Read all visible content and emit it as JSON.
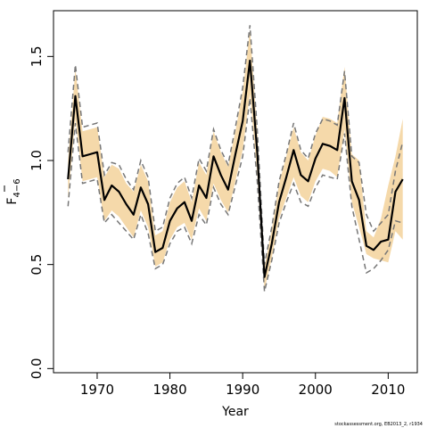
{
  "chart_data": {
    "type": "line",
    "xlabel": "Year",
    "ylabel_main": "F",
    "ylabel_sub": "4−6",
    "xlim": [
      1964,
      2014
    ],
    "ylim": [
      -0.02,
      1.72
    ],
    "xticks": [
      1970,
      1980,
      1990,
      2000,
      2010
    ],
    "yticks": [
      "0.0",
      "0.5",
      "1.0",
      "1.5"
    ],
    "x": [
      1966,
      1967,
      1968,
      1969,
      1970,
      1971,
      1972,
      1973,
      1974,
      1975,
      1976,
      1977,
      1978,
      1979,
      1980,
      1981,
      1982,
      1983,
      1984,
      1985,
      1986,
      1987,
      1988,
      1989,
      1990,
      1991,
      1992,
      1993,
      1994,
      1995,
      1996,
      1997,
      1998,
      1999,
      2000,
      2001,
      2002,
      2003,
      2004,
      2005,
      2006,
      2007,
      2008,
      2009,
      2010,
      2011,
      2012
    ],
    "series": [
      {
        "role": "estimate",
        "color": "#000000",
        "values": [
          0.91,
          1.31,
          1.02,
          1.03,
          1.04,
          0.81,
          0.88,
          0.85,
          0.79,
          0.74,
          0.87,
          0.79,
          0.56,
          0.58,
          0.71,
          0.77,
          0.8,
          0.71,
          0.88,
          0.82,
          1.02,
          0.93,
          0.86,
          1.03,
          1.19,
          1.48,
          1.04,
          0.44,
          0.6,
          0.8,
          0.92,
          1.05,
          0.93,
          0.9,
          1.01,
          1.08,
          1.07,
          1.05,
          1.3,
          0.9,
          0.81,
          0.59,
          0.57,
          0.61,
          0.62,
          0.85,
          0.91
        ]
      },
      {
        "role": "lower-bound",
        "color": "#777777",
        "values": [
          0.78,
          1.18,
          0.89,
          0.9,
          0.91,
          0.7,
          0.74,
          0.7,
          0.66,
          0.62,
          0.74,
          0.65,
          0.48,
          0.5,
          0.6,
          0.66,
          0.68,
          0.6,
          0.74,
          0.69,
          0.87,
          0.79,
          0.74,
          0.88,
          1.02,
          1.3,
          0.9,
          0.37,
          0.52,
          0.7,
          0.8,
          0.89,
          0.8,
          0.78,
          0.87,
          0.93,
          0.92,
          0.91,
          1.13,
          0.78,
          0.62,
          0.46,
          0.48,
          0.52,
          0.57,
          0.71,
          0.7
        ]
      },
      {
        "role": "upper-bound",
        "color": "#777777",
        "values": [
          1.04,
          1.46,
          1.16,
          1.17,
          1.18,
          0.93,
          0.99,
          0.98,
          0.91,
          0.86,
          1.0,
          0.92,
          0.66,
          0.68,
          0.82,
          0.89,
          0.92,
          0.82,
          1.01,
          0.95,
          1.15,
          1.05,
          0.98,
          1.16,
          1.35,
          1.65,
          1.15,
          0.5,
          0.68,
          0.9,
          1.03,
          1.18,
          1.05,
          1.01,
          1.13,
          1.2,
          1.19,
          1.17,
          1.43,
          1.02,
          0.99,
          0.74,
          0.66,
          0.7,
          0.74,
          0.95,
          1.09
        ]
      },
      {
        "role": "band-lower",
        "color": "#f5d9aa",
        "values": [
          0.82,
          1.2,
          0.9,
          0.91,
          0.92,
          0.71,
          0.76,
          0.73,
          0.68,
          0.63,
          0.76,
          0.68,
          0.49,
          0.51,
          0.62,
          0.68,
          0.7,
          0.62,
          0.77,
          0.71,
          0.89,
          0.81,
          0.75,
          0.9,
          1.05,
          1.32,
          0.93,
          0.38,
          0.53,
          0.72,
          0.82,
          0.92,
          0.83,
          0.8,
          0.9,
          0.96,
          0.95,
          0.92,
          1.15,
          0.8,
          0.68,
          0.55,
          0.53,
          0.52,
          0.51,
          0.66,
          0.62
        ]
      },
      {
        "role": "band-upper",
        "color": "#f5d9aa",
        "values": [
          1.0,
          1.44,
          1.14,
          1.15,
          1.16,
          0.92,
          0.98,
          0.96,
          0.89,
          0.85,
          0.98,
          0.9,
          0.64,
          0.66,
          0.8,
          0.87,
          0.9,
          0.8,
          0.99,
          0.93,
          1.14,
          1.04,
          0.97,
          1.14,
          1.33,
          1.63,
          1.14,
          0.49,
          0.67,
          0.89,
          1.02,
          1.16,
          1.04,
          1.0,
          1.12,
          1.21,
          1.2,
          1.18,
          1.45,
          1.03,
          1.0,
          0.66,
          0.63,
          0.72,
          0.88,
          1.02,
          1.2
        ]
      }
    ],
    "grid": false,
    "legend": "none"
  },
  "footer": {
    "credit": "stockassessment.org, EB2013_2, r1934"
  }
}
